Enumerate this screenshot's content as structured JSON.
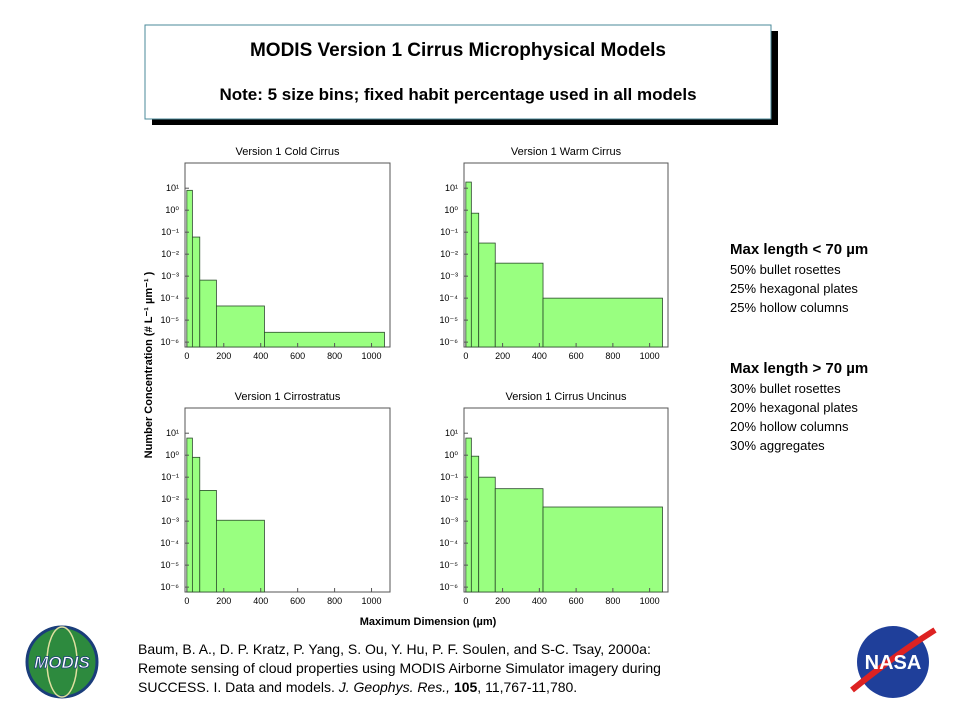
{
  "header": {
    "title": "MODIS Version 1 Cirrus Microphysical Models",
    "note": "Note: 5 size bins; fixed habit percentage used in all models"
  },
  "shared_axes": {
    "ylabel": "Number Concentration (# L⁻¹ µm⁻¹ )",
    "xlabel": "Maximum Dimension (µm)"
  },
  "habits": [
    {
      "heading": "Max length < 70 µm",
      "items": [
        "50% bullet rosettes",
        "25% hexagonal plates",
        "25% hollow columns"
      ]
    },
    {
      "heading": "Max length > 70 µm",
      "items": [
        "30% bullet rosettes",
        "20% hexagonal plates",
        "20% hollow columns",
        "30% aggregates"
      ]
    }
  ],
  "citation": {
    "lines": [
      "Baum, B. A., D. P. Kratz, P. Yang, S. Ou, Y. Hu, P. F. Soulen, and S-C. Tsay, 2000a:",
      "Remote sensing of cloud properties using MODIS Airborne Simulator imagery during"
    ],
    "text": "SUCCESS. I. Data and models.",
    "journal": "J. Geophys. Res.,",
    "volume": "105",
    "pages": ", 11,767-11,780."
  },
  "logos": {
    "left": "MODIS",
    "right": "NASA"
  },
  "chart_data": [
    {
      "type": "histogram",
      "title": "Version 1 Cold Cirrus",
      "bins": [
        0,
        30,
        70,
        160,
        420,
        1070
      ],
      "values": [
        8,
        0.06,
        0.00066,
        4.4e-05,
        2.8e-06
      ],
      "color": "#99ff80",
      "log_y": true,
      "xlim": [
        -10,
        1100
      ],
      "xticks": [
        0,
        200,
        400,
        600,
        800,
        1000
      ],
      "ylim": [
        6e-07,
        140
      ],
      "yticks": [
        {
          "value": 1e-06,
          "label": "10⁻⁶"
        },
        {
          "value": 1e-05,
          "label": "10⁻⁵"
        },
        {
          "value": 0.0001,
          "label": "10⁻⁴"
        },
        {
          "value": 0.001,
          "label": "10⁻³"
        },
        {
          "value": 0.01,
          "label": "10⁻²"
        },
        {
          "value": 0.1,
          "label": "10⁻¹"
        },
        {
          "value": 1,
          "label": "10⁰"
        },
        {
          "value": 10,
          "label": "10¹"
        }
      ]
    },
    {
      "type": "histogram",
      "title": "Version 1 Warm Cirrus",
      "bins": [
        0,
        30,
        70,
        160,
        420,
        1070
      ],
      "values": [
        19,
        0.73,
        0.032,
        0.0039,
        0.0001
      ],
      "color": "#99ff80",
      "log_y": true,
      "xlim": [
        -10,
        1100
      ],
      "xticks": [
        0,
        200,
        400,
        600,
        800,
        1000
      ],
      "ylim": [
        6e-07,
        140
      ],
      "yticks": [
        {
          "value": 1e-06,
          "label": "10⁻⁶"
        },
        {
          "value": 1e-05,
          "label": "10⁻⁵"
        },
        {
          "value": 0.0001,
          "label": "10⁻⁴"
        },
        {
          "value": 0.001,
          "label": "10⁻³"
        },
        {
          "value": 0.01,
          "label": "10⁻²"
        },
        {
          "value": 0.1,
          "label": "10⁻¹"
        },
        {
          "value": 1,
          "label": "10⁰"
        },
        {
          "value": 10,
          "label": "10¹"
        }
      ]
    },
    {
      "type": "histogram",
      "title": "Version 1 Cirrostratus",
      "bins": [
        0,
        30,
        70,
        160,
        420,
        1070
      ],
      "values": [
        6,
        0.8,
        0.025,
        0.0011,
        null
      ],
      "color": "#99ff80",
      "log_y": true,
      "xlim": [
        -10,
        1100
      ],
      "xticks": [
        0,
        200,
        400,
        600,
        800,
        1000
      ],
      "ylim": [
        6e-07,
        140
      ],
      "yticks": [
        {
          "value": 1e-06,
          "label": "10⁻⁶"
        },
        {
          "value": 1e-05,
          "label": "10⁻⁵"
        },
        {
          "value": 0.0001,
          "label": "10⁻⁴"
        },
        {
          "value": 0.001,
          "label": "10⁻³"
        },
        {
          "value": 0.01,
          "label": "10⁻²"
        },
        {
          "value": 0.1,
          "label": "10⁻¹"
        },
        {
          "value": 1,
          "label": "10⁰"
        },
        {
          "value": 10,
          "label": "10¹"
        }
      ]
    },
    {
      "type": "histogram",
      "title": "Version 1 Cirrus Uncinus",
      "bins": [
        0,
        30,
        70,
        160,
        420,
        1070
      ],
      "values": [
        6,
        0.9,
        0.1,
        0.03,
        0.0044
      ],
      "color": "#99ff80",
      "log_y": true,
      "xlim": [
        -10,
        1100
      ],
      "xticks": [
        0,
        200,
        400,
        600,
        800,
        1000
      ],
      "ylim": [
        6e-07,
        140
      ],
      "yticks": [
        {
          "value": 1e-06,
          "label": "10⁻⁶"
        },
        {
          "value": 1e-05,
          "label": "10⁻⁵"
        },
        {
          "value": 0.0001,
          "label": "10⁻⁴"
        },
        {
          "value": 0.001,
          "label": "10⁻³"
        },
        {
          "value": 0.01,
          "label": "10⁻²"
        },
        {
          "value": 0.1,
          "label": "10⁻¹"
        },
        {
          "value": 1,
          "label": "10⁰"
        },
        {
          "value": 10,
          "label": "10¹"
        }
      ]
    }
  ]
}
